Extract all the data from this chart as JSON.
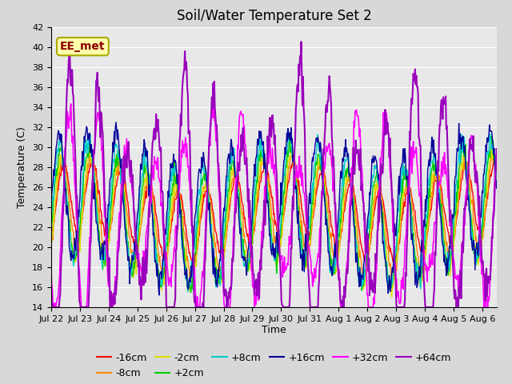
{
  "title": "Soil/Water Temperature Set 2",
  "xlabel": "Time",
  "ylabel": "Temperature (C)",
  "ylim": [
    14,
    42
  ],
  "yticks": [
    14,
    16,
    18,
    20,
    22,
    24,
    26,
    28,
    30,
    32,
    34,
    36,
    38,
    40,
    42
  ],
  "n_days": 15.5,
  "n_points_per_day": 48,
  "x_tick_labels": [
    "Jul 22",
    "Jul 23",
    "Jul 24",
    "Jul 25",
    "Jul 26",
    "Jul 27",
    "Jul 28",
    "Jul 29",
    "Jul 30",
    "Jul 31",
    "Aug 1",
    "Aug 2",
    "Aug 3",
    "Aug 4",
    "Aug 5",
    "Aug 6"
  ],
  "series_labels": [
    "-16cm",
    "-8cm",
    "-2cm",
    "+2cm",
    "+8cm",
    "+16cm",
    "+32cm",
    "+64cm"
  ],
  "series_colors": [
    "#ff0000",
    "#ff8800",
    "#dddd00",
    "#00cc00",
    "#00cccc",
    "#000099",
    "#ff00ff",
    "#9900bb"
  ],
  "line_widths": [
    1.0,
    1.0,
    1.0,
    1.0,
    1.0,
    1.0,
    1.2,
    1.5
  ],
  "annotation_text": "EE_met",
  "bg_color": "#d8d8d8",
  "plot_bg_color": "#e8e8e8",
  "grid_color": "#ffffff",
  "title_fontsize": 12,
  "axis_fontsize": 9,
  "tick_fontsize": 8,
  "legend_fontsize": 9
}
